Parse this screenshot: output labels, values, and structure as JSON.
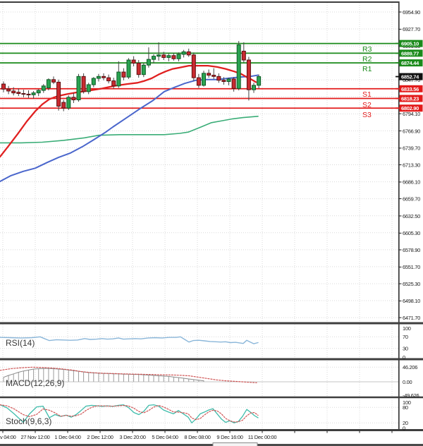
{
  "indicator_labels": {
    "rsi": "RSI(14)",
    "macd": "MACD(12,26,9)",
    "stoch": "Stoch(9,6,3)"
  },
  "colors": {
    "background": "#ffffff",
    "grid": "#d9d9d9",
    "axis_text": "#1c1c1c",
    "panel_border": "#3e3e3e",
    "up_candle": "#2aa351",
    "up_candle_border": "#0e5a26",
    "down_candle": "#c92a2f",
    "down_candle_border": "#5c0f12",
    "wick": "#444444",
    "resistance": "#1a8a1a",
    "support": "#e31b1b",
    "current_price_box": "#101010",
    "ma_red": "#e02020",
    "ma_blue": "#4a66cc",
    "ma_green": "#3aad77",
    "rsi_line": "#8ab6d9",
    "macd_hist": "#9b9b9b",
    "macd_line": "#8a8a8a",
    "macd_signal": "#cf5454",
    "stoch_k": "#3fbcab",
    "stoch_d": "#cf5454",
    "label_text": "#ffffff"
  },
  "chart_data": {
    "type": "candlestick-with-indicators",
    "title": "",
    "price_axis_ticks": [
      6954.9,
      6927.7,
      6901.3,
      6847.7,
      6794.1,
      6766.9,
      6739.7,
      6713.3,
      6686.1,
      6659.7,
      6632.5,
      6605.3,
      6578.9,
      6551.7,
      6525.3,
      6498.1,
      6471.7
    ],
    "time_axis_labels": [
      "v 04:00",
      "27 Nov 12:00",
      "1 Dec 04:00",
      "2 Dec 12:00",
      "3 Dec 20:00",
      "5 Dec 04:00",
      "8 Dec 08:00",
      "9 Dec 16:00",
      "11 Dec 00:00"
    ],
    "levels": {
      "resistance": [
        {
          "label": "R3",
          "value": 6905.1
        },
        {
          "label": "R2",
          "value": 6889.77
        },
        {
          "label": "R1",
          "value": 6874.44
        }
      ],
      "support": [
        {
          "label": "S1",
          "value": 6833.56
        },
        {
          "label": "S2",
          "value": 6818.23
        },
        {
          "label": "S3",
          "value": 6802.9
        }
      ],
      "current_price": {
        "value": 6852.74
      }
    },
    "candles_ohlc": [
      [
        6841,
        6845,
        6828,
        6833
      ],
      [
        6833,
        6838,
        6825,
        6830
      ],
      [
        6830,
        6836,
        6823,
        6827
      ],
      [
        6828,
        6834,
        6822,
        6826
      ],
      [
        6826,
        6832,
        6820,
        6825
      ],
      [
        6825,
        6831,
        6819,
        6824
      ],
      [
        6824,
        6830,
        6818,
        6827
      ],
      [
        6827,
        6833,
        6822,
        6831
      ],
      [
        6831,
        6841,
        6827,
        6838
      ],
      [
        6835,
        6850,
        6831,
        6848
      ],
      [
        6848,
        6853,
        6841,
        6844
      ],
      [
        6844,
        6848,
        6799,
        6806
      ],
      [
        6812,
        6816,
        6798,
        6803
      ],
      [
        6803,
        6823,
        6800,
        6820
      ],
      [
        6820,
        6827,
        6811,
        6816
      ],
      [
        6816,
        6857,
        6813,
        6853
      ],
      [
        6853,
        6858,
        6826,
        6829
      ],
      [
        6829,
        6843,
        6825,
        6840
      ],
      [
        6840,
        6852,
        6836,
        6850
      ],
      [
        6850,
        6857,
        6845,
        6853
      ],
      [
        6853,
        6858,
        6847,
        6851
      ],
      [
        6851,
        6856,
        6842,
        6846
      ],
      [
        6846,
        6851,
        6834,
        6838
      ],
      [
        6838,
        6877,
        6835,
        6860
      ],
      [
        6860,
        6866,
        6847,
        6852
      ],
      [
        6852,
        6882,
        6849,
        6879
      ],
      [
        6879,
        6885,
        6869,
        6874
      ],
      [
        6874,
        6879,
        6851,
        6856
      ],
      [
        6856,
        6874,
        6852,
        6871
      ],
      [
        6871,
        6899,
        6867,
        6880
      ],
      [
        6880,
        6888,
        6874,
        6885
      ],
      [
        6885,
        6907,
        6878,
        6887
      ],
      [
        6887,
        6892,
        6879,
        6883
      ],
      [
        6883,
        6889,
        6877,
        6886
      ],
      [
        6886,
        6890,
        6878,
        6881
      ],
      [
        6881,
        6891,
        6877,
        6888
      ],
      [
        6888,
        6895,
        6883,
        6892
      ],
      [
        6892,
        6897,
        6884,
        6887
      ],
      [
        6887,
        6891,
        6846,
        6851
      ],
      [
        6851,
        6857,
        6835,
        6839
      ],
      [
        6839,
        6862,
        6837,
        6858
      ],
      [
        6858,
        6864,
        6851,
        6855
      ],
      [
        6855,
        6866,
        6849,
        6853
      ],
      [
        6853,
        6858,
        6843,
        6847
      ],
      [
        6847,
        6852,
        6840,
        6845
      ],
      [
        6845,
        6851,
        6839,
        6849
      ],
      [
        6849,
        6852,
        6829,
        6834
      ],
      [
        6834,
        6909,
        6831,
        6903
      ],
      [
        6893,
        6907,
        6875,
        6879
      ],
      [
        6879,
        6884,
        6815,
        6832
      ],
      [
        6832,
        6843,
        6827,
        6839
      ],
      [
        6839,
        6856,
        6834,
        6852.74
      ]
    ],
    "moving_averages": [
      {
        "name": "ma-green-slow",
        "points": [
          [
            0,
            6748
          ],
          [
            30,
            6748
          ],
          [
            60,
            6749
          ],
          [
            90,
            6752
          ],
          [
            120,
            6756
          ],
          [
            140,
            6760
          ],
          [
            170,
            6761
          ],
          [
            200,
            6761
          ],
          [
            233,
            6761
          ],
          [
            255,
            6763
          ],
          [
            267,
            6765
          ],
          [
            285,
            6773
          ],
          [
            300,
            6780
          ],
          [
            315,
            6783
          ],
          [
            330,
            6786
          ],
          [
            345,
            6788
          ],
          [
            366,
            6790
          ]
        ]
      },
      {
        "name": "ma-blue",
        "points": [
          [
            0,
            6687
          ],
          [
            15,
            6696
          ],
          [
            33,
            6703
          ],
          [
            50,
            6708
          ],
          [
            67,
            6717
          ],
          [
            83,
            6725
          ],
          [
            100,
            6732
          ],
          [
            117,
            6742
          ],
          [
            133,
            6753
          ],
          [
            150,
            6765
          ],
          [
            160,
            6773
          ],
          [
            180,
            6788
          ],
          [
            200,
            6803
          ],
          [
            217,
            6815
          ],
          [
            233,
            6829
          ],
          [
            248,
            6836
          ],
          [
            262,
            6842
          ],
          [
            278,
            6847
          ],
          [
            293,
            6848
          ],
          [
            308,
            6848
          ],
          [
            323,
            6850
          ],
          [
            340,
            6852
          ],
          [
            355,
            6853
          ],
          [
            366,
            6855
          ]
        ]
      },
      {
        "name": "ma-red-fast",
        "points": [
          [
            0,
            6726
          ],
          [
            12,
            6743
          ],
          [
            25,
            6762
          ],
          [
            38,
            6782
          ],
          [
            50,
            6798
          ],
          [
            60,
            6809
          ],
          [
            70,
            6817
          ],
          [
            82,
            6822
          ],
          [
            95,
            6825
          ],
          [
            110,
            6828
          ],
          [
            128,
            6831
          ],
          [
            145,
            6834
          ],
          [
            162,
            6838
          ],
          [
            180,
            6841
          ],
          [
            195,
            6843
          ],
          [
            205,
            6846
          ],
          [
            215,
            6850
          ],
          [
            225,
            6856
          ],
          [
            235,
            6861
          ],
          [
            245,
            6865
          ],
          [
            255,
            6867
          ],
          [
            268,
            6870
          ],
          [
            282,
            6870
          ],
          [
            295,
            6870
          ],
          [
            308,
            6868
          ],
          [
            320,
            6865
          ],
          [
            332,
            6861
          ],
          [
            342,
            6857
          ],
          [
            350,
            6852
          ],
          [
            357,
            6848
          ],
          [
            363,
            6844
          ]
        ]
      }
    ],
    "indicators": {
      "rsi": {
        "label": "RSI(14)",
        "scale": [
          100,
          70,
          30,
          0
        ],
        "series": [
          [
            0,
            68
          ],
          [
            15,
            67
          ],
          [
            30,
            66
          ],
          [
            45,
            67
          ],
          [
            57,
            70
          ],
          [
            63,
            64
          ],
          [
            70,
            57
          ],
          [
            80,
            60
          ],
          [
            90,
            59
          ],
          [
            100,
            58
          ],
          [
            110,
            59
          ],
          [
            120,
            64
          ],
          [
            128,
            61
          ],
          [
            137,
            62
          ],
          [
            145,
            64
          ],
          [
            152,
            62
          ],
          [
            160,
            63
          ],
          [
            168,
            66
          ],
          [
            175,
            62
          ],
          [
            183,
            63
          ],
          [
            192,
            64
          ],
          [
            200,
            63
          ],
          [
            210,
            66
          ],
          [
            220,
            67
          ],
          [
            230,
            66
          ],
          [
            240,
            68
          ],
          [
            250,
            68
          ],
          [
            256,
            70
          ],
          [
            262,
            61
          ],
          [
            268,
            52
          ],
          [
            274,
            57
          ],
          [
            282,
            58
          ],
          [
            290,
            56
          ],
          [
            298,
            54
          ],
          [
            306,
            53
          ],
          [
            313,
            52
          ],
          [
            320,
            53
          ],
          [
            327,
            50
          ],
          [
            334,
            51
          ],
          [
            340,
            49
          ],
          [
            345,
            47
          ],
          [
            350,
            58
          ],
          [
            355,
            52
          ],
          [
            360,
            46
          ],
          [
            366,
            50
          ]
        ]
      },
      "macd": {
        "label": "MACD(12,26,9)",
        "scale": [
          "46.206",
          "0.00",
          "-49.626"
        ],
        "scale_values": [
          46.206,
          0,
          -49.626
        ],
        "histogram": [
          14,
          20,
          25,
          30,
          34,
          37,
          40,
          41,
          42,
          42,
          41,
          40,
          39,
          37,
          35,
          33,
          31,
          29,
          28,
          27,
          26,
          26,
          25,
          25,
          24,
          24,
          23,
          23,
          22,
          21,
          20,
          19,
          18,
          17,
          15,
          13,
          11,
          9,
          7,
          5,
          3
        ],
        "signal": [
          [
            0,
            36
          ],
          [
            15,
            41
          ],
          [
            30,
            44
          ],
          [
            46,
            46
          ],
          [
            60,
            45
          ],
          [
            75,
            43
          ],
          [
            90,
            40
          ],
          [
            105,
            36
          ],
          [
            115,
            32
          ],
          [
            130,
            29
          ],
          [
            145,
            27
          ],
          [
            160,
            26
          ],
          [
            175,
            25
          ],
          [
            192,
            24
          ],
          [
            210,
            23
          ],
          [
            230,
            22
          ],
          [
            250,
            21
          ],
          [
            268,
            19
          ],
          [
            280,
            15
          ],
          [
            295,
            10
          ],
          [
            307,
            6
          ],
          [
            320,
            3
          ],
          [
            335,
            1
          ],
          [
            350,
            -1
          ],
          [
            364,
            -3
          ]
        ]
      },
      "stoch": {
        "label": "Stoch(9,6,3)",
        "scale": [
          100,
          80,
          20,
          0
        ],
        "k": [
          [
            0,
            90
          ],
          [
            10,
            78
          ],
          [
            20,
            55
          ],
          [
            33,
            22
          ],
          [
            42,
            55
          ],
          [
            52,
            82
          ],
          [
            61,
            85
          ],
          [
            70,
            40
          ],
          [
            78,
            52
          ],
          [
            86,
            45
          ],
          [
            94,
            50
          ],
          [
            101,
            42
          ],
          [
            108,
            52
          ],
          [
            115,
            68
          ],
          [
            122,
            85
          ],
          [
            130,
            88
          ],
          [
            138,
            86
          ],
          [
            145,
            84
          ],
          [
            152,
            86
          ],
          [
            160,
            84
          ],
          [
            168,
            88
          ],
          [
            175,
            90
          ],
          [
            182,
            80
          ],
          [
            190,
            60
          ],
          [
            197,
            52
          ],
          [
            204,
            65
          ],
          [
            211,
            88
          ],
          [
            218,
            90
          ],
          [
            225,
            85
          ],
          [
            232,
            70
          ],
          [
            239,
            62
          ],
          [
            246,
            55
          ],
          [
            253,
            68
          ],
          [
            260,
            55
          ],
          [
            267,
            42
          ],
          [
            272,
            20
          ],
          [
            278,
            35
          ],
          [
            284,
            55
          ],
          [
            290,
            62
          ],
          [
            296,
            70
          ],
          [
            302,
            75
          ],
          [
            308,
            55
          ],
          [
            314,
            35
          ],
          [
            320,
            22
          ],
          [
            326,
            28
          ],
          [
            332,
            20
          ],
          [
            338,
            25
          ],
          [
            344,
            45
          ],
          [
            350,
            72
          ],
          [
            356,
            60
          ],
          [
            361,
            48
          ],
          [
            366,
            40
          ]
        ]
      }
    }
  }
}
